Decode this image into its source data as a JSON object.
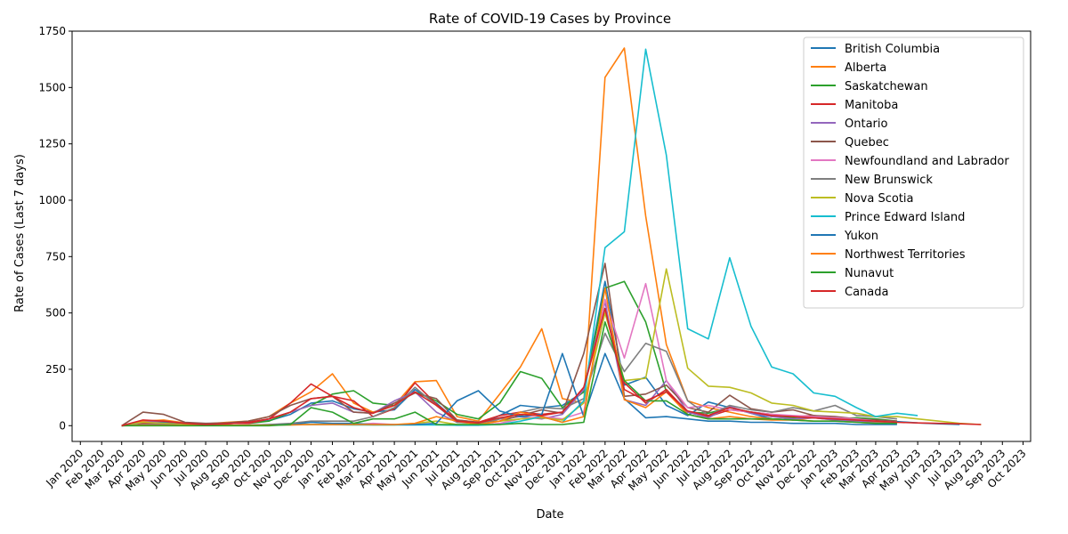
{
  "chart_data": {
    "type": "line",
    "title": "Rate of COVID-19 Cases by Province",
    "xlabel": "Date",
    "ylabel": "Rate of Cases (Last 7 days)",
    "ylim": [
      -70,
      1750
    ],
    "y_ticks": [
      0,
      250,
      500,
      750,
      1000,
      1250,
      1500,
      1750
    ],
    "x_ticks": [
      "Jan 2020",
      "Feb 2020",
      "Mar 2020",
      "Apr 2020",
      "May 2020",
      "Jun 2020",
      "Jul 2020",
      "Aug 2020",
      "Sep 2020",
      "Oct 2020",
      "Nov 2020",
      "Dec 2020",
      "Jan 2021",
      "Feb 2021",
      "Mar 2021",
      "Apr 2021",
      "May 2021",
      "Jun 2021",
      "Jul 2021",
      "Aug 2021",
      "Sep 2021",
      "Oct 2021",
      "Nov 2021",
      "Dec 2021",
      "Jan 2022",
      "Feb 2022",
      "Mar 2022",
      "Apr 2022",
      "May 2022",
      "Jun 2022",
      "Jul 2022",
      "Aug 2022",
      "Sep 2022",
      "Oct 2022",
      "Nov 2022",
      "Dec 2022",
      "Jan 2023",
      "Feb 2023",
      "Mar 2023",
      "Apr 2023",
      "May 2023",
      "Jun 2023",
      "Jul 2023",
      "Aug 2023",
      "Sep 2023",
      "Oct 2023"
    ],
    "x_range": [
      "2019-12-20",
      "2023-10-12"
    ],
    "grid": false,
    "legend_position": "top-right",
    "dates": [
      "2020-03-01",
      "2020-04-01",
      "2020-05-01",
      "2020-06-01",
      "2020-07-01",
      "2020-08-01",
      "2020-09-01",
      "2020-10-01",
      "2020-11-01",
      "2020-12-01",
      "2021-01-01",
      "2021-02-01",
      "2021-03-01",
      "2021-04-01",
      "2021-05-01",
      "2021-06-01",
      "2021-07-01",
      "2021-08-01",
      "2021-09-01",
      "2021-10-01",
      "2021-11-01",
      "2021-12-01",
      "2022-01-01",
      "2022-02-01",
      "2022-03-01",
      "2022-04-01",
      "2022-05-01",
      "2022-06-01",
      "2022-07-01",
      "2022-08-01",
      "2022-09-01",
      "2022-10-01",
      "2022-11-01",
      "2022-12-01",
      "2023-01-01",
      "2023-02-01",
      "2023-03-01",
      "2023-04-01",
      "2023-05-01",
      "2023-06-01",
      "2023-07-01",
      "2023-08-01"
    ],
    "series": [
      {
        "name": "British Columbia",
        "color": "#1f77b4",
        "values": [
          0,
          10,
          15,
          8,
          4,
          8,
          14,
          22,
          50,
          100,
          110,
          75,
          60,
          70,
          160,
          100,
          20,
          5,
          45,
          90,
          80,
          90,
          150,
          640,
          180,
          215,
          90,
          45,
          105,
          80,
          55,
          30,
          25,
          40,
          30,
          25,
          20,
          18,
          12,
          8,
          5,
          null
        ]
      },
      {
        "name": "Alberta",
        "color": "#ff7f0e",
        "values": [
          0,
          20,
          25,
          12,
          8,
          15,
          20,
          40,
          100,
          150,
          230,
          100,
          60,
          90,
          195,
          200,
          40,
          20,
          140,
          260,
          430,
          120,
          100,
          1545,
          1675,
          930,
          360,
          110,
          80,
          60,
          40,
          30,
          25,
          35,
          25,
          20,
          15,
          12,
          null,
          null,
          null,
          null
        ]
      },
      {
        "name": "Saskatchewan",
        "color": "#2ca02c",
        "values": [
          0,
          10,
          10,
          5,
          5,
          10,
          10,
          20,
          60,
          90,
          140,
          155,
          100,
          90,
          150,
          110,
          50,
          30,
          100,
          240,
          210,
          80,
          150,
          610,
          640,
          460,
          150,
          60,
          55,
          80,
          60,
          40,
          35,
          45,
          30,
          35,
          30,
          20,
          null,
          null,
          null,
          null
        ]
      },
      {
        "name": "Manitoba",
        "color": "#d62728",
        "values": [
          0,
          10,
          10,
          5,
          5,
          10,
          10,
          30,
          100,
          185,
          130,
          110,
          40,
          75,
          190,
          95,
          25,
          15,
          45,
          60,
          50,
          60,
          165,
          520,
          190,
          100,
          160,
          60,
          40,
          70,
          60,
          50,
          40,
          45,
          35,
          25,
          20,
          15,
          null,
          null,
          null,
          null
        ]
      },
      {
        "name": "Ontario",
        "color": "#9467bd",
        "values": [
          0,
          15,
          20,
          10,
          5,
          8,
          15,
          30,
          60,
          90,
          100,
          60,
          55,
          110,
          150,
          60,
          15,
          10,
          30,
          40,
          30,
          50,
          160,
          550,
          115,
          90,
          200,
          60,
          35,
          85,
          55,
          40,
          30,
          35,
          25,
          20,
          18,
          15,
          null,
          null,
          null,
          null
        ]
      },
      {
        "name": "Quebec",
        "color": "#8c564b",
        "values": [
          0,
          60,
          50,
          15,
          10,
          12,
          20,
          40,
          90,
          120,
          130,
          60,
          55,
          100,
          145,
          120,
          25,
          15,
          20,
          45,
          70,
          55,
          320,
          720,
          130,
          140,
          180,
          80,
          60,
          135,
          75,
          60,
          70,
          45,
          40,
          30,
          25,
          20,
          null,
          null,
          null,
          null
        ]
      },
      {
        "name": "Newfoundland and Labrador",
        "color": "#e377c2",
        "values": [
          0,
          5,
          5,
          2,
          1,
          1,
          2,
          3,
          5,
          5,
          5,
          5,
          10,
          5,
          5,
          5,
          2,
          2,
          10,
          30,
          40,
          30,
          60,
          560,
          300,
          630,
          200,
          80,
          90,
          70,
          60,
          50,
          45,
          40,
          35,
          30,
          20,
          15,
          null,
          null,
          null,
          null
        ]
      },
      {
        "name": "New Brunswick",
        "color": "#7f7f7f",
        "values": [
          0,
          3,
          3,
          2,
          1,
          2,
          3,
          5,
          10,
          20,
          20,
          20,
          40,
          80,
          170,
          90,
          15,
          10,
          30,
          60,
          80,
          75,
          120,
          410,
          240,
          365,
          330,
          110,
          45,
          90,
          70,
          60,
          80,
          65,
          90,
          45,
          40,
          30,
          null,
          null,
          null,
          null
        ]
      },
      {
        "name": "Nova Scotia",
        "color": "#bcbd22",
        "values": [
          0,
          15,
          10,
          5,
          2,
          2,
          2,
          3,
          5,
          5,
          5,
          5,
          3,
          3,
          10,
          20,
          5,
          5,
          20,
          30,
          35,
          25,
          100,
          500,
          200,
          210,
          695,
          255,
          175,
          170,
          145,
          100,
          90,
          65,
          60,
          55,
          40,
          40,
          30,
          20,
          10,
          5
        ]
      },
      {
        "name": "Prince Edward Island",
        "color": "#17becf",
        "values": [
          0,
          2,
          2,
          1,
          1,
          1,
          1,
          2,
          3,
          5,
          5,
          3,
          3,
          3,
          3,
          3,
          2,
          2,
          5,
          20,
          40,
          15,
          110,
          790,
          860,
          1670,
          1200,
          430,
          385,
          745,
          440,
          260,
          230,
          145,
          130,
          80,
          40,
          55,
          45,
          null,
          null,
          null
        ]
      },
      {
        "name": "Yukon",
        "color": "#1f77b4",
        "values": [
          0,
          5,
          5,
          2,
          2,
          2,
          2,
          5,
          5,
          15,
          10,
          10,
          5,
          5,
          5,
          10,
          110,
          155,
          65,
          40,
          50,
          320,
          40,
          320,
          120,
          35,
          40,
          30,
          20,
          20,
          15,
          15,
          10,
          10,
          10,
          5,
          5,
          5,
          null,
          null,
          null,
          null
        ]
      },
      {
        "name": "Northwest Territories",
        "color": "#ff7f0e",
        "values": [
          0,
          3,
          3,
          2,
          2,
          2,
          2,
          3,
          3,
          5,
          5,
          5,
          5,
          5,
          10,
          40,
          20,
          5,
          20,
          60,
          40,
          15,
          40,
          610,
          115,
          80,
          150,
          50,
          30,
          40,
          30,
          25,
          25,
          20,
          20,
          15,
          10,
          10,
          null,
          null,
          null,
          null
        ]
      },
      {
        "name": "Nunavut",
        "color": "#2ca02c",
        "values": [
          0,
          0,
          0,
          0,
          0,
          0,
          0,
          0,
          5,
          80,
          60,
          10,
          30,
          30,
          60,
          5,
          5,
          5,
          5,
          10,
          5,
          5,
          15,
          460,
          200,
          110,
          110,
          50,
          30,
          30,
          30,
          30,
          25,
          20,
          20,
          15,
          10,
          10,
          null,
          null,
          null,
          null
        ]
      },
      {
        "name": "Canada",
        "color": "#d62728",
        "values": [
          0,
          25,
          20,
          10,
          5,
          8,
          15,
          30,
          60,
          120,
          130,
          80,
          55,
          90,
          150,
          90,
          20,
          12,
          35,
          50,
          45,
          60,
          170,
          520,
          160,
          110,
          150,
          65,
          45,
          80,
          60,
          45,
          40,
          35,
          30,
          25,
          20,
          15,
          12,
          10,
          8,
          5
        ]
      }
    ]
  }
}
